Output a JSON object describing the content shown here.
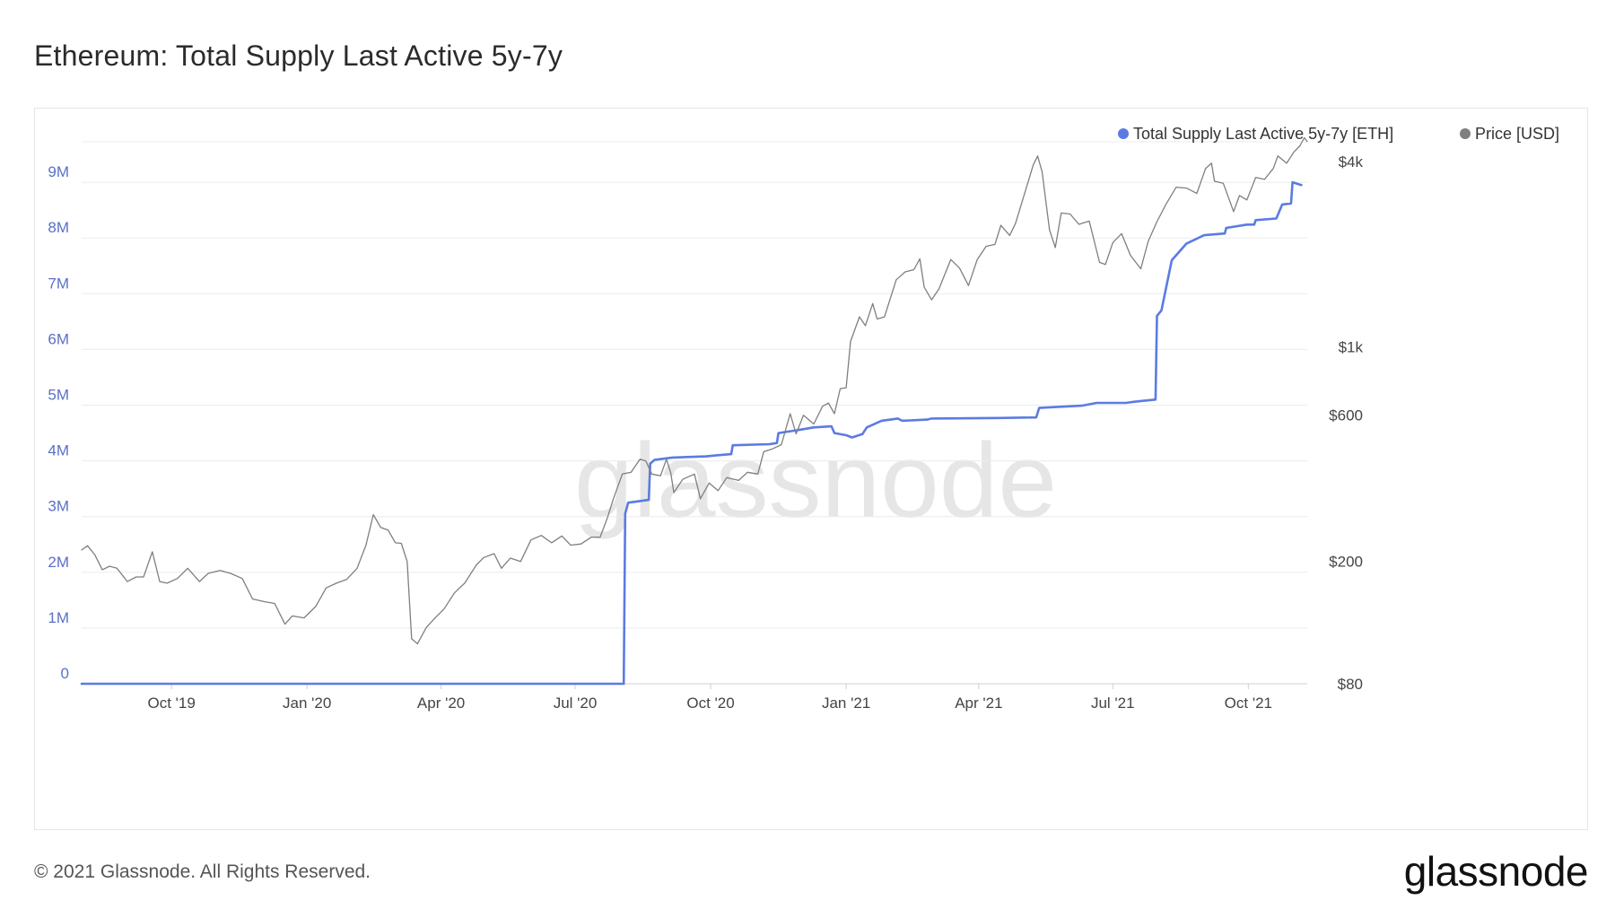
{
  "title": "Ethereum: Total Supply Last Active 5y-7y",
  "watermark": "glassnode",
  "footer": {
    "copyright": "© 2021 Glassnode. All Rights Reserved.",
    "brand": "glassnode"
  },
  "colors": {
    "supply": "#5b7be3",
    "price": "#7f7f7f",
    "grid": "#ececec",
    "left_axis": "#5b6fc6",
    "right_axis": "#444444",
    "watermark": "#e6e6e6"
  },
  "chart_data": {
    "type": "line",
    "x_axis": {
      "type": "date",
      "range": [
        "2019-08-01",
        "2021-11-10"
      ],
      "ticks": [
        {
          "date": "2019-10-01",
          "label": "Oct '19"
        },
        {
          "date": "2020-01-01",
          "label": "Jan '20"
        },
        {
          "date": "2020-04-01",
          "label": "Apr '20"
        },
        {
          "date": "2020-07-01",
          "label": "Jul '20"
        },
        {
          "date": "2020-10-01",
          "label": "Oct '20"
        },
        {
          "date": "2021-01-01",
          "label": "Jan '21"
        },
        {
          "date": "2021-04-01",
          "label": "Apr '21"
        },
        {
          "date": "2021-07-01",
          "label": "Jul '21"
        },
        {
          "date": "2021-10-01",
          "label": "Oct '21"
        }
      ]
    },
    "y_left": {
      "scale": "linear",
      "range": [
        0,
        10000000
      ],
      "ticks": [
        {
          "value": 0,
          "label": "0"
        },
        {
          "value": 1000000,
          "label": "1M"
        },
        {
          "value": 2000000,
          "label": "2M"
        },
        {
          "value": 3000000,
          "label": "3M"
        },
        {
          "value": 4000000,
          "label": "4M"
        },
        {
          "value": 5000000,
          "label": "5M"
        },
        {
          "value": 6000000,
          "label": "6M"
        },
        {
          "value": 7000000,
          "label": "7M"
        },
        {
          "value": 8000000,
          "label": "8M"
        },
        {
          "value": 9000000,
          "label": "9M"
        }
      ]
    },
    "y_right": {
      "scale": "log",
      "range": [
        80,
        5200
      ],
      "ticks": [
        {
          "value": 80,
          "label": "$80"
        },
        {
          "value": 200,
          "label": "$200"
        },
        {
          "value": 600,
          "label": "$600"
        },
        {
          "value": 1000,
          "label": "$1k"
        },
        {
          "value": 4000,
          "label": "$4k"
        }
      ]
    },
    "grid": true,
    "legend_position": "top-right",
    "series": [
      {
        "name": "Total Supply Last Active 5y-7y [ETH]",
        "axis": "left",
        "points": [
          [
            "2019-08-01",
            0
          ],
          [
            "2020-08-03",
            0
          ],
          [
            "2020-08-04",
            3050000
          ],
          [
            "2020-08-06",
            3250000
          ],
          [
            "2020-08-20",
            3300000
          ],
          [
            "2020-08-21",
            3950000
          ],
          [
            "2020-08-24",
            4020000
          ],
          [
            "2020-09-05",
            4060000
          ],
          [
            "2020-09-28",
            4080000
          ],
          [
            "2020-10-05",
            4100000
          ],
          [
            "2020-10-15",
            4120000
          ],
          [
            "2020-10-16",
            4280000
          ],
          [
            "2020-11-10",
            4300000
          ],
          [
            "2020-11-15",
            4320000
          ],
          [
            "2020-11-16",
            4500000
          ],
          [
            "2020-12-01",
            4560000
          ],
          [
            "2020-12-10",
            4600000
          ],
          [
            "2020-12-22",
            4620000
          ],
          [
            "2020-12-24",
            4500000
          ],
          [
            "2021-01-01",
            4460000
          ],
          [
            "2021-01-05",
            4420000
          ],
          [
            "2021-01-12",
            4480000
          ],
          [
            "2021-01-15",
            4600000
          ],
          [
            "2021-01-25",
            4720000
          ],
          [
            "2021-02-05",
            4760000
          ],
          [
            "2021-02-08",
            4720000
          ],
          [
            "2021-02-25",
            4740000
          ],
          [
            "2021-02-28",
            4760000
          ],
          [
            "2021-04-15",
            4770000
          ],
          [
            "2021-05-10",
            4780000
          ],
          [
            "2021-05-12",
            4950000
          ],
          [
            "2021-06-10",
            4990000
          ],
          [
            "2021-06-20",
            5040000
          ],
          [
            "2021-07-10",
            5040000
          ],
          [
            "2021-07-15",
            5060000
          ],
          [
            "2021-07-30",
            5100000
          ],
          [
            "2021-07-31",
            6600000
          ],
          [
            "2021-08-03",
            6700000
          ],
          [
            "2021-08-10",
            7600000
          ],
          [
            "2021-08-20",
            7900000
          ],
          [
            "2021-09-01",
            8050000
          ],
          [
            "2021-09-15",
            8080000
          ],
          [
            "2021-09-16",
            8180000
          ],
          [
            "2021-09-30",
            8240000
          ],
          [
            "2021-10-05",
            8240000
          ],
          [
            "2021-10-06",
            8320000
          ],
          [
            "2021-10-20",
            8350000
          ],
          [
            "2021-10-24",
            8600000
          ],
          [
            "2021-10-30",
            8620000
          ],
          [
            "2021-10-31",
            9000000
          ],
          [
            "2021-11-06",
            8950000
          ]
        ]
      },
      {
        "name": "Price [USD]",
        "axis": "right",
        "points": [
          [
            "2019-08-01",
            218
          ],
          [
            "2019-08-05",
            225
          ],
          [
            "2019-08-10",
            210
          ],
          [
            "2019-08-15",
            188
          ],
          [
            "2019-08-20",
            193
          ],
          [
            "2019-08-25",
            190
          ],
          [
            "2019-09-01",
            172
          ],
          [
            "2019-09-07",
            178
          ],
          [
            "2019-09-12",
            178
          ],
          [
            "2019-09-18",
            215
          ],
          [
            "2019-09-23",
            172
          ],
          [
            "2019-09-28",
            170
          ],
          [
            "2019-10-05",
            176
          ],
          [
            "2019-10-12",
            190
          ],
          [
            "2019-10-20",
            172
          ],
          [
            "2019-10-26",
            183
          ],
          [
            "2019-11-03",
            187
          ],
          [
            "2019-11-10",
            183
          ],
          [
            "2019-11-18",
            176
          ],
          [
            "2019-11-25",
            151
          ],
          [
            "2019-12-03",
            148
          ],
          [
            "2019-12-10",
            146
          ],
          [
            "2019-12-17",
            125
          ],
          [
            "2019-12-22",
            133
          ],
          [
            "2019-12-30",
            131
          ],
          [
            "2020-01-07",
            143
          ],
          [
            "2020-01-14",
            164
          ],
          [
            "2020-01-21",
            170
          ],
          [
            "2020-01-28",
            175
          ],
          [
            "2020-02-04",
            190
          ],
          [
            "2020-02-10",
            226
          ],
          [
            "2020-02-15",
            284
          ],
          [
            "2020-02-20",
            258
          ],
          [
            "2020-02-25",
            253
          ],
          [
            "2020-03-01",
            230
          ],
          [
            "2020-03-05",
            229
          ],
          [
            "2020-03-09",
            200
          ],
          [
            "2020-03-12",
            112
          ],
          [
            "2020-03-16",
            108
          ],
          [
            "2020-03-22",
            122
          ],
          [
            "2020-03-28",
            131
          ],
          [
            "2020-04-03",
            140
          ],
          [
            "2020-04-10",
            158
          ],
          [
            "2020-04-17",
            170
          ],
          [
            "2020-04-25",
            195
          ],
          [
            "2020-04-30",
            206
          ],
          [
            "2020-05-07",
            212
          ],
          [
            "2020-05-12",
            190
          ],
          [
            "2020-05-18",
            205
          ],
          [
            "2020-05-25",
            200
          ],
          [
            "2020-06-01",
            235
          ],
          [
            "2020-06-08",
            243
          ],
          [
            "2020-06-15",
            230
          ],
          [
            "2020-06-22",
            242
          ],
          [
            "2020-06-28",
            226
          ],
          [
            "2020-07-05",
            228
          ],
          [
            "2020-07-12",
            240
          ],
          [
            "2020-07-18",
            240
          ],
          [
            "2020-07-23",
            278
          ],
          [
            "2020-07-27",
            320
          ],
          [
            "2020-08-02",
            385
          ],
          [
            "2020-08-08",
            390
          ],
          [
            "2020-08-14",
            430
          ],
          [
            "2020-08-18",
            425
          ],
          [
            "2020-08-22",
            385
          ],
          [
            "2020-08-28",
            380
          ],
          [
            "2020-09-01",
            430
          ],
          [
            "2020-09-04",
            387
          ],
          [
            "2020-09-06",
            335
          ],
          [
            "2020-09-12",
            370
          ],
          [
            "2020-09-20",
            385
          ],
          [
            "2020-09-24",
            320
          ],
          [
            "2020-09-30",
            360
          ],
          [
            "2020-10-06",
            340
          ],
          [
            "2020-10-12",
            375
          ],
          [
            "2020-10-20",
            367
          ],
          [
            "2020-10-26",
            390
          ],
          [
            "2020-11-02",
            385
          ],
          [
            "2020-11-06",
            455
          ],
          [
            "2020-11-12",
            465
          ],
          [
            "2020-11-18",
            480
          ],
          [
            "2020-11-24",
            605
          ],
          [
            "2020-11-28",
            520
          ],
          [
            "2020-12-03",
            598
          ],
          [
            "2020-12-10",
            560
          ],
          [
            "2020-12-16",
            640
          ],
          [
            "2020-12-20",
            655
          ],
          [
            "2020-12-24",
            605
          ],
          [
            "2020-12-28",
            730
          ],
          [
            "2021-01-01",
            735
          ],
          [
            "2021-01-04",
            1040
          ],
          [
            "2021-01-10",
            1250
          ],
          [
            "2021-01-14",
            1170
          ],
          [
            "2021-01-19",
            1380
          ],
          [
            "2021-01-22",
            1230
          ],
          [
            "2021-01-27",
            1250
          ],
          [
            "2021-02-04",
            1650
          ],
          [
            "2021-02-10",
            1750
          ],
          [
            "2021-02-16",
            1780
          ],
          [
            "2021-02-20",
            1930
          ],
          [
            "2021-02-23",
            1560
          ],
          [
            "2021-02-28",
            1420
          ],
          [
            "2021-03-05",
            1540
          ],
          [
            "2021-03-13",
            1920
          ],
          [
            "2021-03-19",
            1800
          ],
          [
            "2021-03-25",
            1580
          ],
          [
            "2021-03-31",
            1920
          ],
          [
            "2021-04-06",
            2120
          ],
          [
            "2021-04-12",
            2150
          ],
          [
            "2021-04-16",
            2480
          ],
          [
            "2021-04-22",
            2300
          ],
          [
            "2021-04-26",
            2520
          ],
          [
            "2021-05-03",
            3250
          ],
          [
            "2021-05-08",
            3900
          ],
          [
            "2021-05-11",
            4170
          ],
          [
            "2021-05-14",
            3700
          ],
          [
            "2021-05-19",
            2400
          ],
          [
            "2021-05-23",
            2100
          ],
          [
            "2021-05-27",
            2720
          ],
          [
            "2021-06-02",
            2700
          ],
          [
            "2021-06-08",
            2500
          ],
          [
            "2021-06-15",
            2560
          ],
          [
            "2021-06-22",
            1880
          ],
          [
            "2021-06-26",
            1850
          ],
          [
            "2021-07-01",
            2180
          ],
          [
            "2021-07-07",
            2330
          ],
          [
            "2021-07-13",
            1980
          ],
          [
            "2021-07-20",
            1790
          ],
          [
            "2021-07-25",
            2200
          ],
          [
            "2021-07-31",
            2550
          ],
          [
            "2021-08-06",
            2900
          ],
          [
            "2021-08-13",
            3300
          ],
          [
            "2021-08-20",
            3280
          ],
          [
            "2021-08-27",
            3150
          ],
          [
            "2021-09-02",
            3800
          ],
          [
            "2021-09-06",
            3950
          ],
          [
            "2021-09-08",
            3450
          ],
          [
            "2021-09-14",
            3400
          ],
          [
            "2021-09-21",
            2750
          ],
          [
            "2021-09-25",
            3100
          ],
          [
            "2021-09-30",
            3000
          ],
          [
            "2021-10-06",
            3550
          ],
          [
            "2021-10-12",
            3500
          ],
          [
            "2021-10-18",
            3800
          ],
          [
            "2021-10-21",
            4170
          ],
          [
            "2021-10-27",
            3950
          ],
          [
            "2021-11-01",
            4300
          ],
          [
            "2021-11-05",
            4500
          ],
          [
            "2021-11-08",
            4780
          ],
          [
            "2021-11-10",
            4650
          ]
        ]
      }
    ]
  }
}
